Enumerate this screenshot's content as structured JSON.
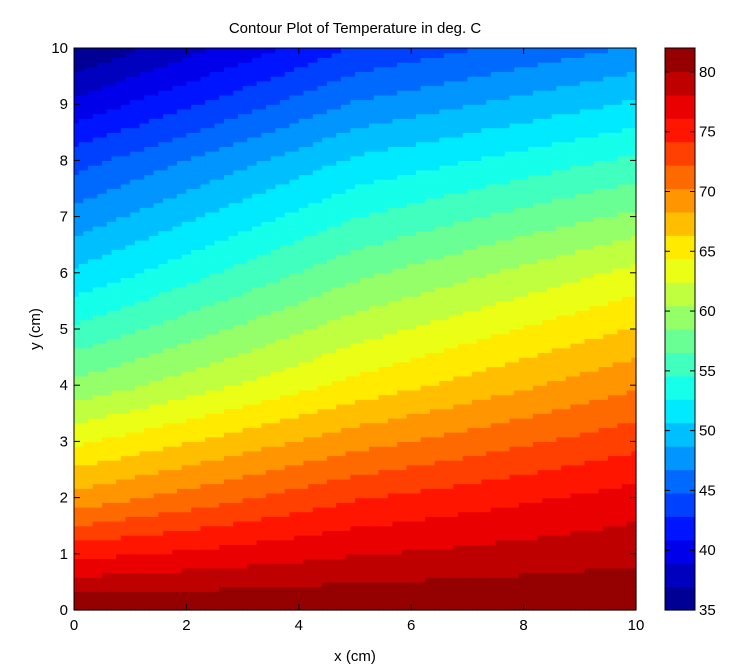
{
  "chart_data": {
    "type": "heatmap",
    "subtype": "filled-contour",
    "title": "Contour Plot of Temperature in deg. C",
    "xlabel": "x (cm)",
    "ylabel": "y (cm)",
    "xlim": [
      0,
      10
    ],
    "ylim": [
      0,
      10
    ],
    "xticks": [
      0,
      2,
      4,
      6,
      8,
      10
    ],
    "yticks": [
      0,
      1,
      2,
      3,
      4,
      5,
      6,
      7,
      8,
      9,
      10
    ],
    "colorbar": {
      "colormap": "jet",
      "placement": "right",
      "limits": [
        35,
        82
      ],
      "ticks": [
        35,
        40,
        45,
        50,
        55,
        60,
        65,
        70,
        75,
        80
      ]
    },
    "contour_levels": 24,
    "field_samples": {
      "x": [
        0,
        5,
        10
      ],
      "y": [
        0,
        2,
        4,
        6,
        8,
        10
      ],
      "z": [
        [
          82,
          82,
          82
        ],
        [
          69,
          74,
          77
        ],
        [
          59,
          65,
          70
        ],
        [
          51,
          58,
          63
        ],
        [
          44,
          51,
          55
        ],
        [
          35,
          43,
          47
        ]
      ]
    }
  }
}
